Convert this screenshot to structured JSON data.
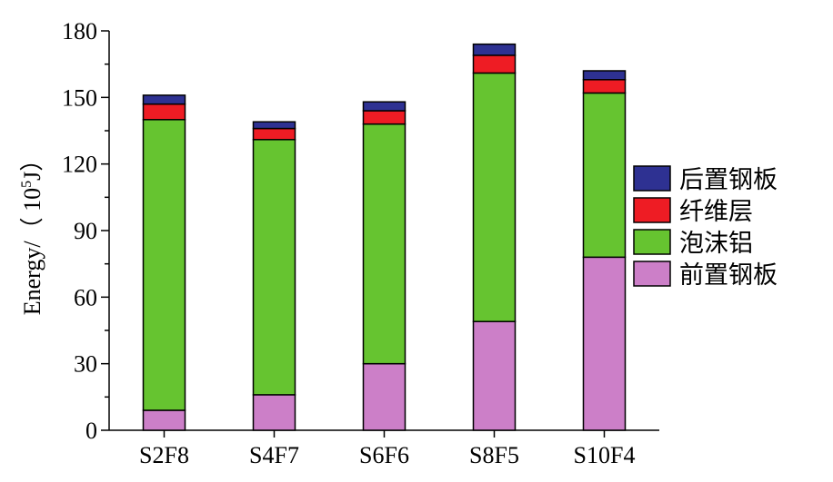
{
  "chart_data": {
    "type": "bar",
    "stacked": true,
    "categories": [
      "S2F8",
      "S4F7",
      "S6F6",
      "S8F5",
      "S10F4"
    ],
    "series": [
      {
        "name": "前置钢板",
        "color": "#cc7fc8",
        "values": [
          9,
          16,
          30,
          49,
          78
        ]
      },
      {
        "name": "泡沫铝",
        "color": "#66c430",
        "values": [
          131,
          115,
          108,
          112,
          74
        ]
      },
      {
        "name": "纤维层",
        "color": "#ee1c24",
        "values": [
          7,
          5,
          6,
          8,
          6
        ]
      },
      {
        "name": "后置钢板",
        "color": "#2e3192",
        "values": [
          4,
          3,
          4,
          5,
          4
        ]
      }
    ],
    "legend_order": [
      "后置钢板",
      "纤维层",
      "泡沫铝",
      "前置钢板"
    ],
    "ylabel": "Energy/（10⁵J）",
    "ylabel_prefix": "Energy/（ 10",
    "ylabel_sup": "5",
    "ylabel_suffix": "J）",
    "ylim": [
      0,
      180
    ],
    "yticks": [
      0,
      30,
      60,
      90,
      120,
      150,
      180
    ],
    "grid": false,
    "legend_position": "right"
  }
}
